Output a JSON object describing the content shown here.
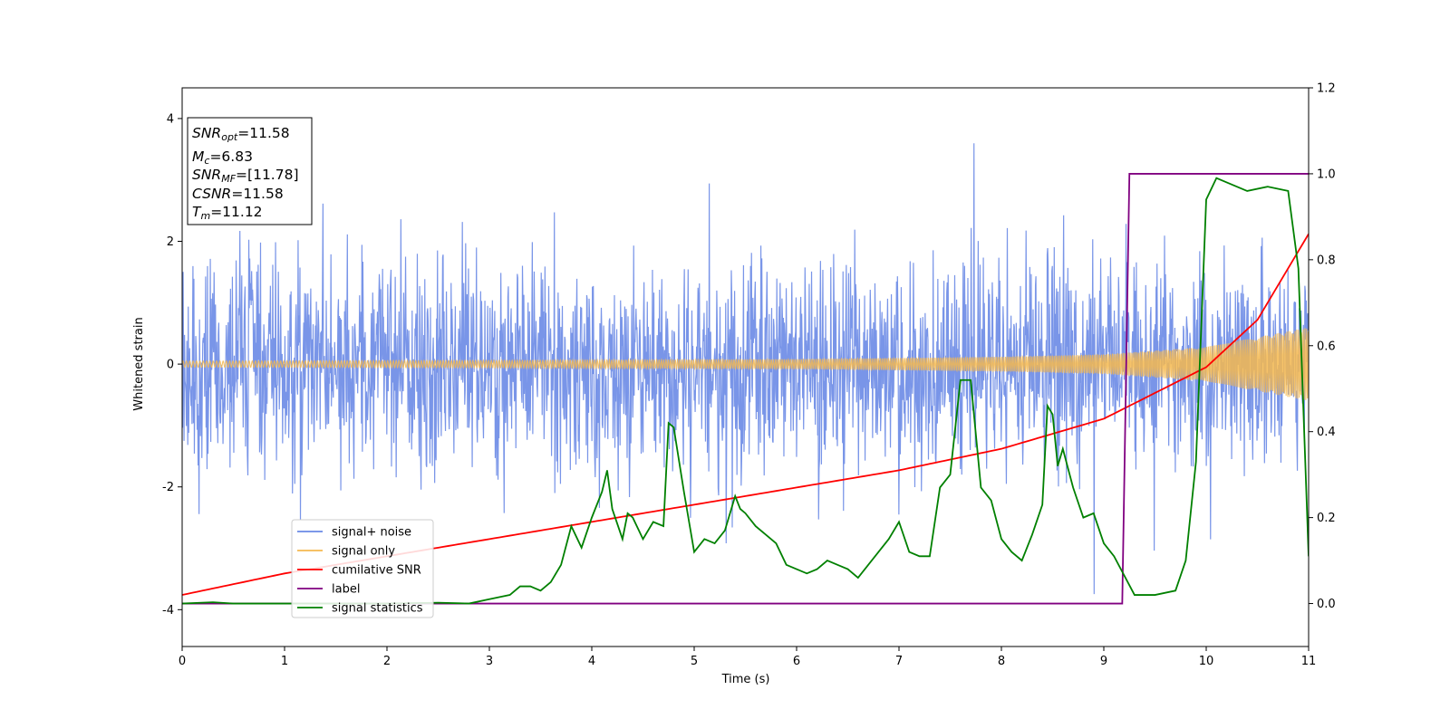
{
  "chart_data": {
    "type": "line",
    "xlabel": "Time (s)",
    "ylabel": "Whitened strain",
    "xlim": [
      0,
      11
    ],
    "ylim": [
      -4.6,
      4.5
    ],
    "y2lim": [
      -0.1,
      1.2
    ],
    "x_ticks": [
      0,
      1,
      2,
      3,
      4,
      5,
      6,
      7,
      8,
      9,
      10,
      11
    ],
    "y_ticks": [
      -4,
      -2,
      0,
      2,
      4
    ],
    "y2_ticks": [
      "0.0",
      "0.2",
      "0.4",
      "0.6",
      "0.8",
      "1.0",
      "1.2"
    ],
    "grid": false,
    "legend_position": "lower-left",
    "annotation": {
      "snr_opt": {
        "sym": "SNR",
        "sub": "opt",
        "value": "=11.58"
      },
      "m_c": {
        "sym": "M",
        "sub": "c",
        "value": "=6.83"
      },
      "snr_mf": {
        "sym": "SNR",
        "sub": "MF",
        "value": "=[11.78]"
      },
      "csnr": {
        "sym": "CSNR",
        "sub": "",
        "value": "=11.58"
      },
      "t_m": {
        "sym": "T",
        "sub": "m",
        "value": "=11.12"
      }
    },
    "series": [
      {
        "name": "signal+ noise",
        "color": "#6a8ae6",
        "axis": "left",
        "description_values": {
          "amplitude_range": [
            -4.1,
            4.1
          ]
        }
      },
      {
        "name": "signal only",
        "color": "#f5b84f",
        "axis": "left",
        "envelope": {
          "x": [
            0,
            3,
            6,
            8,
            9,
            10,
            11
          ],
          "amp": [
            0.05,
            0.06,
            0.08,
            0.12,
            0.16,
            0.28,
            0.6
          ]
        }
      },
      {
        "name": "cumilative SNR",
        "color": "#ff0000",
        "axis": "right",
        "x": [
          0,
          1,
          2,
          3,
          4,
          5,
          6,
          7,
          8,
          9,
          10,
          10.5,
          11
        ],
        "y": [
          0.02,
          0.07,
          0.11,
          0.15,
          0.19,
          0.23,
          0.27,
          0.31,
          0.36,
          0.43,
          0.55,
          0.66,
          0.86
        ]
      },
      {
        "name": "label",
        "color": "#800080",
        "axis": "right",
        "x": [
          0,
          9.18,
          9.25,
          11
        ],
        "y": [
          0,
          0,
          1,
          1
        ]
      },
      {
        "name": "signal statistics",
        "color": "#008000",
        "axis": "right",
        "x": [
          0,
          0.3,
          0.5,
          1,
          2,
          2.5,
          2.8,
          3.0,
          3.1,
          3.2,
          3.3,
          3.4,
          3.5,
          3.6,
          3.7,
          3.8,
          3.9,
          4.0,
          4.1,
          4.15,
          4.2,
          4.3,
          4.35,
          4.4,
          4.5,
          4.6,
          4.7,
          4.75,
          4.8,
          4.9,
          5.0,
          5.1,
          5.2,
          5.3,
          5.4,
          5.45,
          5.5,
          5.6,
          5.7,
          5.8,
          5.9,
          6.0,
          6.1,
          6.2,
          6.3,
          6.4,
          6.5,
          6.6,
          6.7,
          6.8,
          6.9,
          7.0,
          7.1,
          7.2,
          7.3,
          7.4,
          7.5,
          7.6,
          7.7,
          7.8,
          7.9,
          8.0,
          8.1,
          8.2,
          8.3,
          8.4,
          8.45,
          8.5,
          8.55,
          8.6,
          8.7,
          8.8,
          8.9,
          9.0,
          9.1,
          9.3,
          9.5,
          9.7,
          9.8,
          9.9,
          10.0,
          10.1,
          10.2,
          10.4,
          10.6,
          10.8,
          10.9,
          11.0
        ],
        "y": [
          0,
          0.003,
          0,
          0,
          0,
          0.002,
          0,
          0.01,
          0.015,
          0.02,
          0.04,
          0.04,
          0.03,
          0.05,
          0.09,
          0.18,
          0.13,
          0.2,
          0.26,
          0.31,
          0.22,
          0.15,
          0.21,
          0.2,
          0.15,
          0.19,
          0.18,
          0.42,
          0.41,
          0.26,
          0.12,
          0.15,
          0.14,
          0.17,
          0.25,
          0.22,
          0.21,
          0.18,
          0.16,
          0.14,
          0.09,
          0.08,
          0.07,
          0.08,
          0.1,
          0.09,
          0.08,
          0.06,
          0.09,
          0.12,
          0.15,
          0.19,
          0.12,
          0.11,
          0.11,
          0.27,
          0.3,
          0.52,
          0.52,
          0.27,
          0.24,
          0.15,
          0.12,
          0.1,
          0.16,
          0.23,
          0.46,
          0.44,
          0.32,
          0.36,
          0.27,
          0.2,
          0.21,
          0.14,
          0.11,
          0.02,
          0.02,
          0.03,
          0.1,
          0.33,
          0.94,
          0.99,
          0.98,
          0.96,
          0.97,
          0.96,
          0.78,
          0.11
        ]
      }
    ]
  }
}
